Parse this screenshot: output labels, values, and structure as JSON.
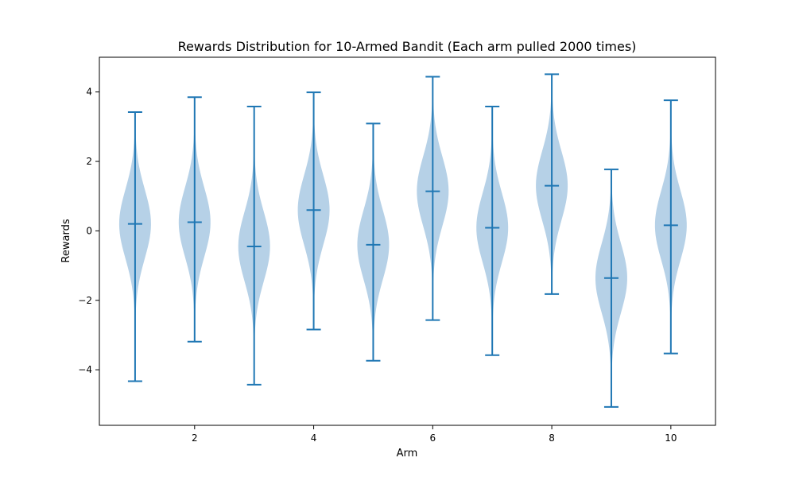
{
  "chart_data": {
    "type": "violin",
    "title": "Rewards Distribution for 10-Armed Bandit (Each arm pulled 2000 times)",
    "xlabel": "Arm",
    "ylabel": "Rewards",
    "xlim": [
      0.4,
      10.75
    ],
    "ylim": [
      -5.6,
      5.0
    ],
    "xticks": [
      2,
      4,
      6,
      8,
      10
    ],
    "yticks": [
      -4,
      -2,
      0,
      2,
      4
    ],
    "grid": false,
    "colors": {
      "fill": "#a9c9e3",
      "line": "#1f77b4"
    },
    "arms": [
      {
        "arm": 1,
        "min": -4.33,
        "max": 3.42,
        "mean": 0.2
      },
      {
        "arm": 2,
        "min": -3.19,
        "max": 3.85,
        "mean": 0.25
      },
      {
        "arm": 3,
        "min": -4.43,
        "max": 3.58,
        "mean": -0.45
      },
      {
        "arm": 4,
        "min": -2.84,
        "max": 3.99,
        "mean": 0.6
      },
      {
        "arm": 5,
        "min": -3.74,
        "max": 3.09,
        "mean": -0.4
      },
      {
        "arm": 6,
        "min": -2.57,
        "max": 4.44,
        "mean": 1.14
      },
      {
        "arm": 7,
        "min": -3.58,
        "max": 3.58,
        "mean": 0.09
      },
      {
        "arm": 8,
        "min": -1.82,
        "max": 4.51,
        "mean": 1.3
      },
      {
        "arm": 9,
        "min": -5.07,
        "max": 1.77,
        "mean": -1.36
      },
      {
        "arm": 10,
        "min": -3.53,
        "max": 3.76,
        "mean": 0.16
      }
    ]
  }
}
